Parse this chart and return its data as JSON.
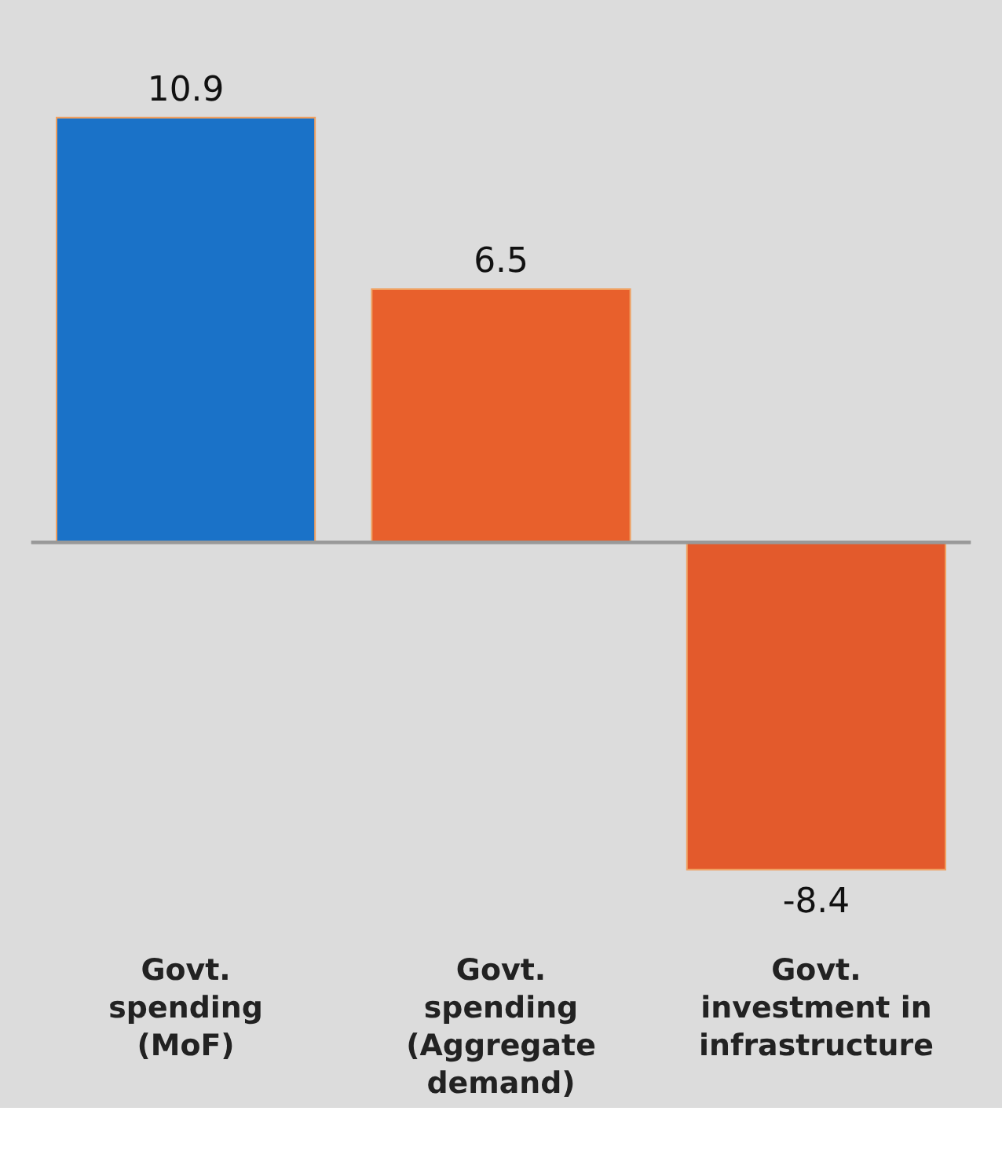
{
  "chart_data": {
    "type": "bar",
    "categories": [
      "Govt.\nspending\n(MoF)",
      "Govt.\nspending\n(Aggregate\ndemand)",
      "Govt.\ninvestment in\ninfrastructure"
    ],
    "values": [
      10.9,
      6.5,
      -8.4
    ],
    "colors": [
      "#1a72c8",
      "#e8602c",
      "#e35a2c"
    ],
    "data_labels": true,
    "legend": false
  }
}
